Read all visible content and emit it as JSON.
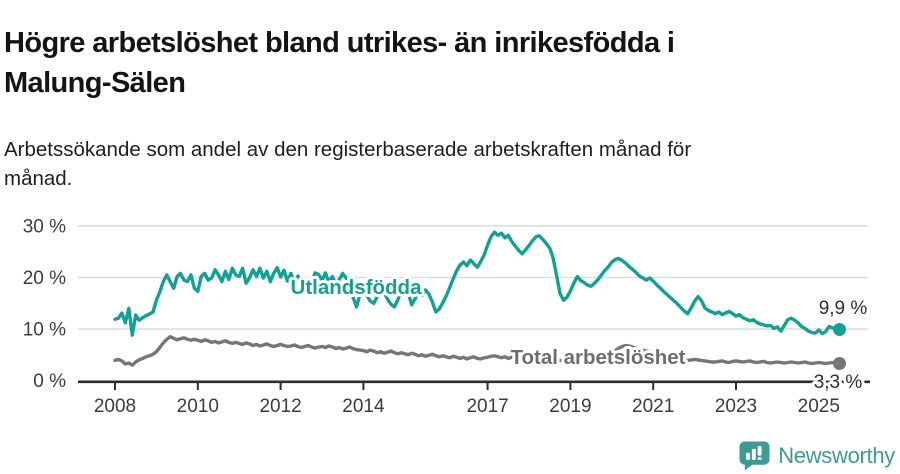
{
  "header": {
    "title_line1": "Högre arbetslöshet bland utrikes- än inrikesfödda i",
    "title_line2": "Malung-Sälen",
    "subtitle_line1": "Arbetssökande som andel av den registerbaserade arbetskraften månad för",
    "subtitle_line2": "månad."
  },
  "chart_data": {
    "type": "line",
    "title": "Högre arbetslöshet bland utrikes- än inrikesfödda i Malung-Sälen",
    "subtitle": "Arbetssökande som andel av den registerbaserade arbetskraften månad för månad.",
    "grid": true,
    "legend_position": "inline-labels",
    "x_axis": {
      "start_year": 2008,
      "step_months": 1,
      "end": "2025-07",
      "tick_years": [
        2008,
        2010,
        2012,
        2014,
        2017,
        2019,
        2021,
        2023,
        2025
      ],
      "tick_labels": [
        "2008",
        "2010",
        "2012",
        "2014",
        "2017",
        "2019",
        "2021",
        "2023",
        "2025"
      ]
    },
    "y_axis": {
      "ticks": [
        0,
        10,
        20,
        30
      ],
      "tick_labels": [
        "0 %",
        "10 %",
        "20 %",
        "30 %"
      ],
      "ylim": [
        0,
        32
      ],
      "unit": "%"
    },
    "series": [
      {
        "name": "Utlandsfödda",
        "color": "#14A094",
        "label_color": "#14A094",
        "end_label": "9,9 %",
        "end_value": 9.9,
        "values": [
          11.9,
          12.1,
          13.1,
          11.2,
          14.0,
          8.8,
          12.7,
          11.7,
          12.2,
          12.6,
          12.9,
          13.3,
          15.6,
          17.2,
          19.2,
          20.5,
          19.2,
          17.9,
          20.2,
          20.8,
          19.5,
          19.2,
          20.5,
          17.9,
          17.3,
          20.2,
          20.8,
          19.5,
          19.9,
          21.5,
          20.5,
          19.2,
          21.2,
          19.6,
          21.8,
          20.5,
          20.2,
          21.8,
          18.9,
          19.9,
          21.5,
          20.2,
          21.8,
          19.9,
          21.2,
          19.2,
          20.8,
          21.9,
          20.1,
          21.4,
          19.3,
          20.8,
          18.8,
          20.3,
          18.5,
          19.7,
          18.2,
          19.0,
          20.9,
          20.6,
          19.4,
          20.9,
          19.1,
          20.2,
          18.6,
          19.6,
          20.8,
          19.9,
          18.5,
          16.2,
          14.3,
          16.8,
          17.9,
          16.6,
          15.4,
          15.0,
          16.3,
          17.8,
          17.1,
          15.8,
          14.8,
          14.3,
          15.7,
          17.4,
          18.2,
          17.0,
          14.7,
          15.9,
          17.2,
          16.5,
          17.6,
          16.8,
          15.2,
          13.3,
          13.9,
          15.1,
          16.4,
          18.0,
          19.7,
          21.3,
          22.4,
          23.0,
          22.3,
          23.4,
          22.7,
          22.0,
          23.1,
          24.4,
          26.3,
          27.9,
          28.8,
          28.2,
          28.6,
          27.7,
          28.2,
          27.0,
          26.1,
          25.3,
          24.6,
          25.4,
          26.2,
          27.1,
          27.9,
          28.1,
          27.4,
          26.6,
          25.7,
          23.8,
          20.4,
          16.9,
          15.6,
          16.2,
          17.4,
          18.9,
          20.2,
          19.4,
          19.0,
          18.5,
          18.3,
          18.9,
          19.6,
          20.5,
          21.4,
          22.1,
          23.0,
          23.5,
          23.7,
          23.3,
          22.8,
          22.1,
          21.6,
          21.0,
          20.3,
          19.9,
          19.5,
          19.9,
          19.3,
          18.6,
          18.0,
          17.3,
          16.7,
          16.1,
          15.5,
          14.9,
          14.2,
          13.5,
          13.0,
          14.1,
          15.4,
          16.3,
          15.5,
          14.1,
          13.6,
          13.3,
          13.0,
          13.3,
          12.8,
          13.1,
          13.4,
          13.0,
          12.5,
          12.8,
          12.2,
          11.9,
          11.6,
          11.8,
          11.3,
          11.0,
          10.8,
          10.6,
          10.7,
          10.1,
          10.4,
          9.6,
          10.7,
          11.8,
          12.1,
          11.7,
          11.2,
          10.5,
          10.1,
          9.6,
          9.3,
          9.2,
          9.8,
          9.1,
          9.5,
          10.5,
          10.2,
          10.0,
          9.9
        ]
      },
      {
        "name": "Total arbetslöshet",
        "color": "#767676",
        "label_color": "#6E6E6E",
        "end_label": "3,3 %",
        "end_value": 3.3,
        "values": [
          3.9,
          4.1,
          3.8,
          3.2,
          3.4,
          3.0,
          3.6,
          4.0,
          4.3,
          4.6,
          4.8,
          5.1,
          5.6,
          6.4,
          7.3,
          8.0,
          8.5,
          8.2,
          7.9,
          8.1,
          8.3,
          8.0,
          7.8,
          8.0,
          7.8,
          7.6,
          7.9,
          7.7,
          7.4,
          7.6,
          7.3,
          7.5,
          7.7,
          7.4,
          7.2,
          7.4,
          7.2,
          7.0,
          7.3,
          7.1,
          6.8,
          7.0,
          6.7,
          6.9,
          7.1,
          6.8,
          6.6,
          6.8,
          7.0,
          6.8,
          6.6,
          6.7,
          6.9,
          6.6,
          6.4,
          6.6,
          6.8,
          6.5,
          6.3,
          6.5,
          6.6,
          6.4,
          6.7,
          6.5,
          6.2,
          6.4,
          6.1,
          6.3,
          6.5,
          6.2,
          6.0,
          5.9,
          5.8,
          5.6,
          5.9,
          5.7,
          5.4,
          5.6,
          5.3,
          5.5,
          5.7,
          5.4,
          5.2,
          5.4,
          5.2,
          5.0,
          5.3,
          5.1,
          4.8,
          5.0,
          4.7,
          4.9,
          5.1,
          4.8,
          4.6,
          4.8,
          4.6,
          4.4,
          4.7,
          4.5,
          4.3,
          4.5,
          4.2,
          4.4,
          4.6,
          4.3,
          4.2,
          4.4,
          4.5,
          4.7,
          4.8,
          4.6,
          4.4,
          4.6,
          4.3,
          4.5,
          4.7,
          4.4,
          4.2,
          4.4,
          4.5,
          4.6,
          4.7,
          4.6,
          4.4,
          4.3,
          4.4,
          4.2,
          4.0,
          3.9,
          3.8,
          3.9,
          4.0,
          4.2,
          4.3,
          4.2,
          4.4,
          4.5,
          4.6,
          4.5,
          4.4,
          4.3,
          4.5,
          4.8,
          5.2,
          5.8,
          6.3,
          6.6,
          6.8,
          6.7,
          6.5,
          6.3,
          6.1,
          5.9,
          5.7,
          5.6,
          5.5,
          5.3,
          5.1,
          4.9,
          4.7,
          4.5,
          4.3,
          4.2,
          4.1,
          4.0,
          3.9,
          4.0,
          4.1,
          4.0,
          3.9,
          3.8,
          3.7,
          3.6,
          3.6,
          3.7,
          3.8,
          3.6,
          3.5,
          3.7,
          3.8,
          3.7,
          3.6,
          3.7,
          3.8,
          3.6,
          3.5,
          3.6,
          3.7,
          3.5,
          3.4,
          3.5,
          3.6,
          3.5,
          3.4,
          3.5,
          3.6,
          3.5,
          3.4,
          3.5,
          3.6,
          3.4,
          3.3,
          3.4,
          3.5,
          3.4,
          3.3,
          3.4,
          3.5,
          3.4,
          3.3
        ]
      }
    ]
  },
  "footer": {
    "brand": "Newsworthy",
    "brand_color": "#3E9B94",
    "logo_icon": "newsworthy-bubble-chart-icon"
  }
}
